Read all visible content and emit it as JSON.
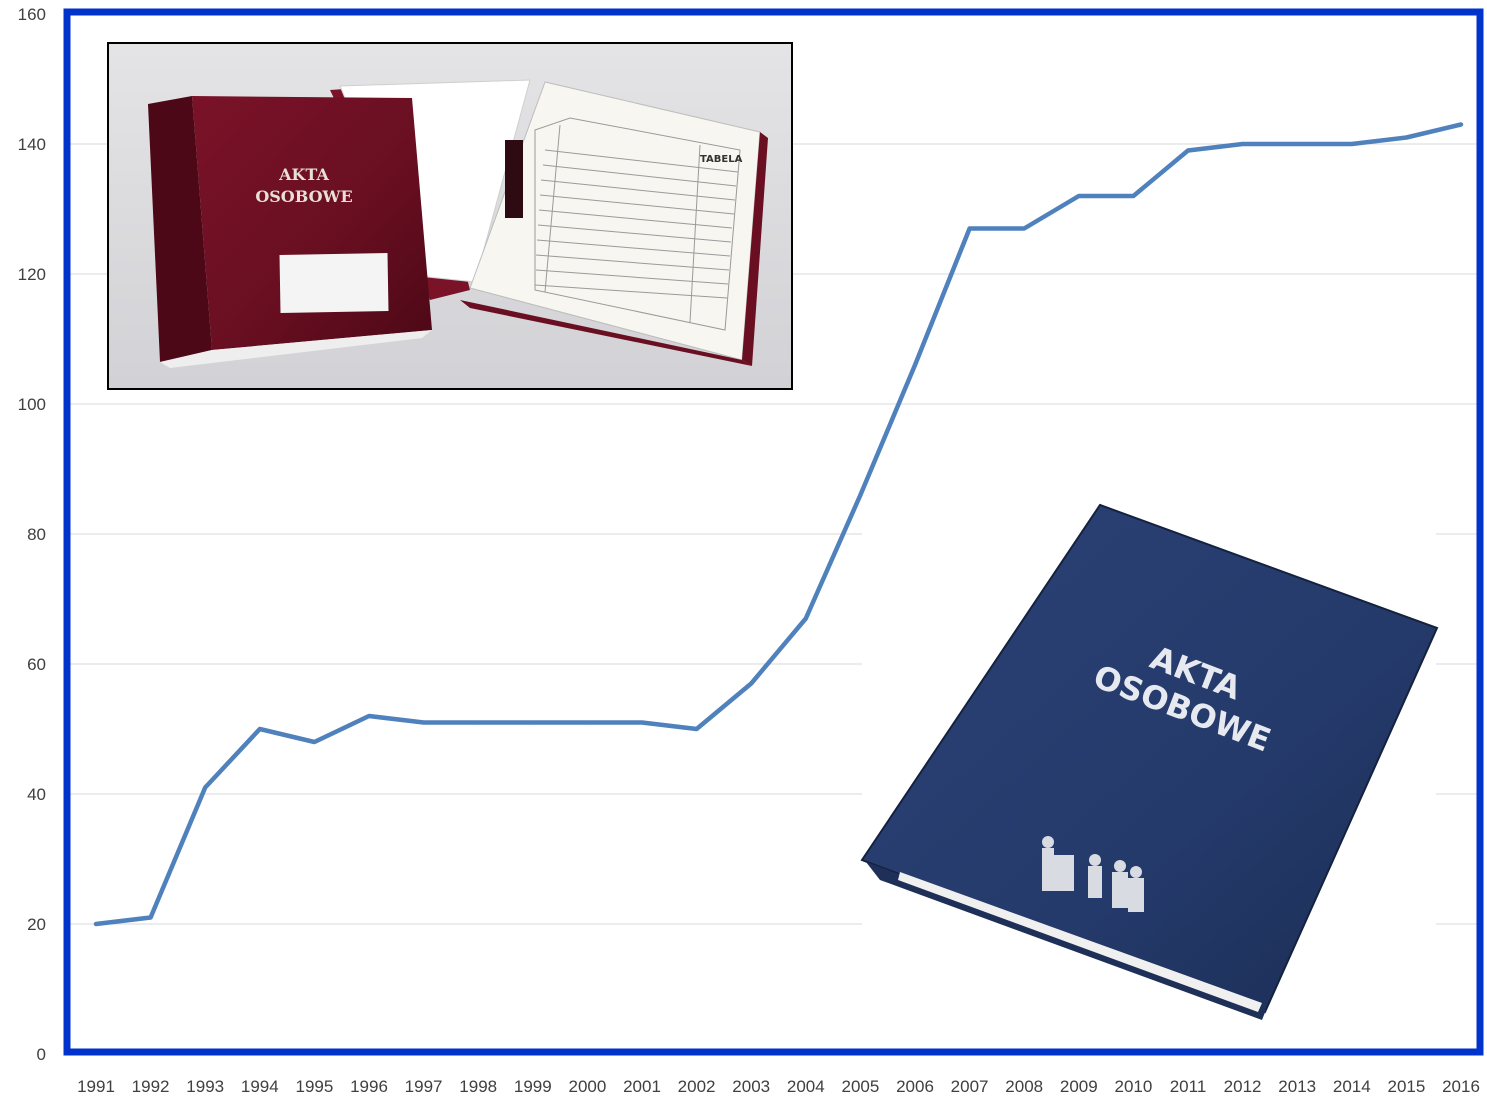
{
  "chart_data": {
    "type": "line",
    "categories": [
      "1991",
      "1992",
      "1993",
      "1994",
      "1995",
      "1996",
      "1997",
      "1998",
      "1999",
      "2000",
      "2001",
      "2002",
      "2003",
      "2004",
      "2005",
      "2006",
      "2007",
      "2008",
      "2009",
      "2010",
      "2011",
      "2012",
      "2013",
      "2014",
      "2015",
      "2016"
    ],
    "series": [
      {
        "values": [
          20,
          21,
          41,
          50,
          48,
          52,
          51,
          51,
          51,
          51,
          51,
          50,
          57,
          67,
          86,
          106,
          127,
          127,
          132,
          132,
          139,
          140,
          140,
          140,
          141,
          143
        ]
      }
    ],
    "ylim": [
      0,
      160
    ],
    "yticks": [
      0,
      20,
      40,
      60,
      80,
      100,
      120,
      140,
      160
    ],
    "grid": true,
    "colors": {
      "line": "#4f81bd",
      "frame": "#0033cc",
      "grid": "#d9d9d9"
    }
  },
  "images": {
    "red_binder": {
      "cover_text": [
        "AKTA",
        "OSOBOWE"
      ],
      "header_text": "TABELA"
    },
    "blue_binder": {
      "cover_text": [
        "AKTA",
        "OSOBOWE"
      ]
    }
  }
}
